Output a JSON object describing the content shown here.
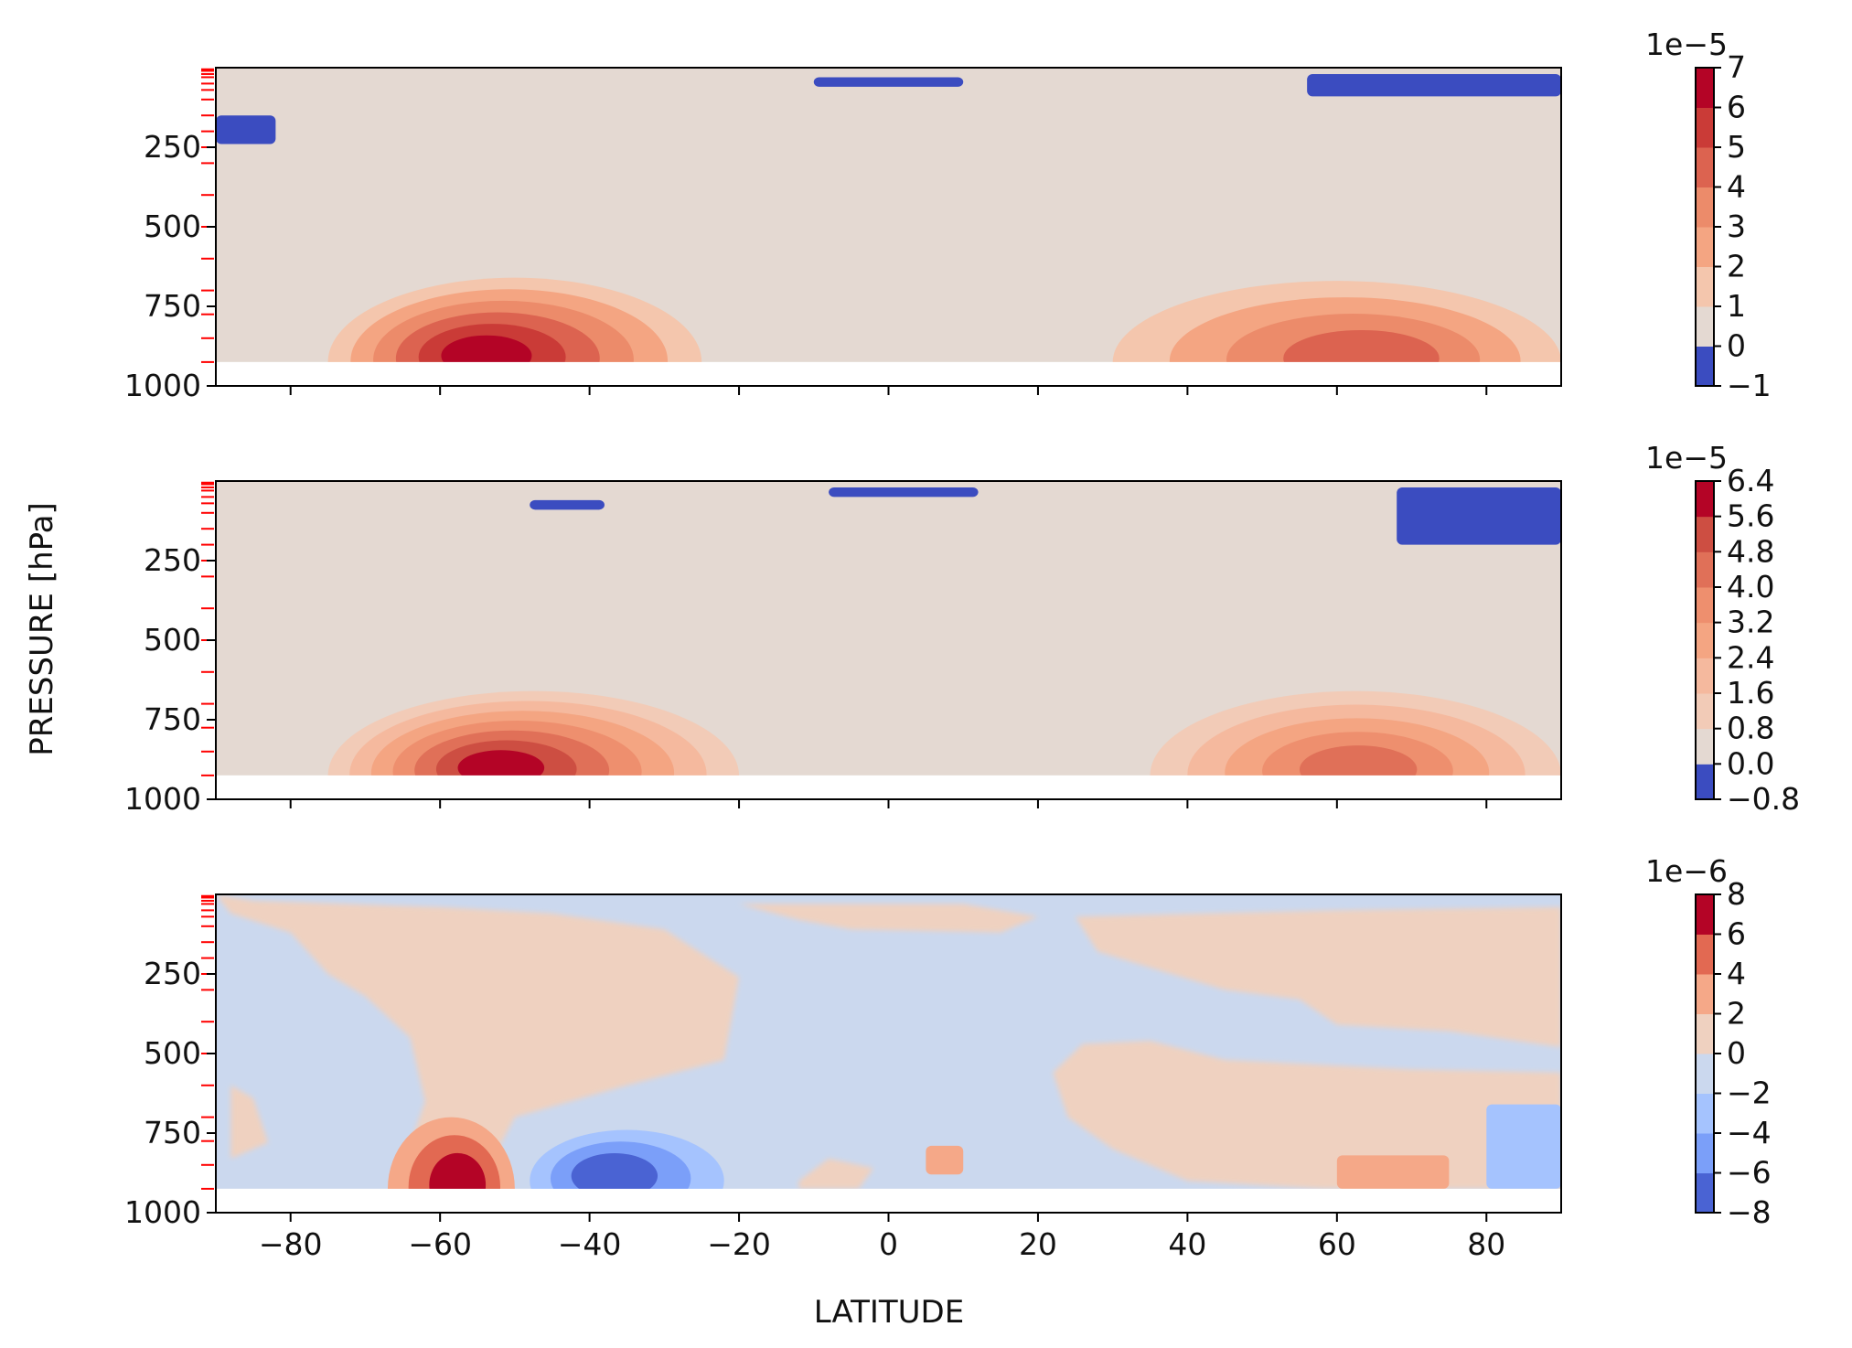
{
  "figure": {
    "ylabel": "PRESSURE [hPa]",
    "xlabel": "LATITUDE",
    "background": "#ffffff"
  },
  "chart_data": [
    {
      "type": "heatmap",
      "panel": "top",
      "xlim": [
        -90,
        90
      ],
      "ylim": [
        1000,
        0
      ],
      "x_ticks": [
        -80,
        -60,
        -40,
        -20,
        0,
        20,
        40,
        60,
        80
      ],
      "y_ticks": [
        250,
        500,
        750,
        1000
      ],
      "show_x_ticklabels": false,
      "field_bottom_pressure": 925,
      "level_marks": [
        5,
        10,
        20,
        30,
        50,
        70,
        100,
        150,
        200,
        250,
        300,
        400,
        500,
        600,
        700,
        775,
        850,
        925
      ],
      "colorbar": {
        "exponent": "1e−5",
        "tick_labels": [
          "7",
          "6",
          "5",
          "4",
          "3",
          "2",
          "1",
          "0",
          "−1"
        ],
        "levels": [
          -1,
          0,
          1,
          2,
          3,
          4,
          5,
          6,
          7
        ],
        "colors": [
          "#3b4cc0",
          "#e4d9d2",
          "#f4c6ad",
          "#f4a582",
          "#ec8b6a",
          "#dc6350",
          "#ca3b37",
          "#b40426"
        ]
      },
      "background_level_color": "#e4d9d2",
      "features": [
        {
          "kind": "max_region",
          "lat": [
            -75,
            -25
          ],
          "p": [
            660,
            925
          ],
          "peak_value": 6.5,
          "peak_lat": -55,
          "peak_p": 860
        },
        {
          "kind": "max_region",
          "lat": [
            30,
            90
          ],
          "p": [
            670,
            925
          ],
          "peak_value": 4.5,
          "peak_lat": 65,
          "peak_p": 880
        },
        {
          "kind": "min_region",
          "lat": [
            -90,
            -82
          ],
          "p": [
            150,
            240
          ],
          "value": -0.5
        },
        {
          "kind": "min_region",
          "lat": [
            -10,
            10
          ],
          "p": [
            30,
            60
          ],
          "value": -0.5
        },
        {
          "kind": "min_region",
          "lat": [
            56,
            90
          ],
          "p": [
            20,
            90
          ],
          "value": -0.5
        }
      ]
    },
    {
      "type": "heatmap",
      "panel": "middle",
      "xlim": [
        -90,
        90
      ],
      "ylim": [
        1000,
        0
      ],
      "x_ticks": [
        -80,
        -60,
        -40,
        -20,
        0,
        20,
        40,
        60,
        80
      ],
      "y_ticks": [
        250,
        500,
        750,
        1000
      ],
      "show_x_ticklabels": false,
      "field_bottom_pressure": 925,
      "level_marks": [
        5,
        10,
        20,
        30,
        50,
        70,
        100,
        150,
        200,
        250,
        300,
        400,
        500,
        600,
        700,
        775,
        850,
        925
      ],
      "colorbar": {
        "exponent": "1e−5",
        "tick_labels": [
          "6.4",
          "5.6",
          "4.8",
          "4.0",
          "3.2",
          "2.4",
          "1.6",
          "0.8",
          "0.0",
          "−0.8"
        ],
        "levels": [
          -0.8,
          0.0,
          0.8,
          1.6,
          2.4,
          3.2,
          4.0,
          4.8,
          5.6,
          6.4
        ],
        "colors": [
          "#3b4cc0",
          "#e4d9d2",
          "#f2cbb7",
          "#f5b99e",
          "#f4a582",
          "#ee8f6e",
          "#e07058",
          "#cd4e42",
          "#b40426"
        ]
      },
      "background_level_color": "#e4d9d2",
      "features": [
        {
          "kind": "max_region",
          "lat": [
            -75,
            -20
          ],
          "p": [
            660,
            925
          ],
          "peak_value": 5.8,
          "peak_lat": -53,
          "peak_p": 850
        },
        {
          "kind": "max_region",
          "lat": [
            35,
            90
          ],
          "p": [
            660,
            925
          ],
          "peak_value": 4.2,
          "peak_lat": 63,
          "peak_p": 860
        },
        {
          "kind": "min_region",
          "lat": [
            -48,
            -38
          ],
          "p": [
            60,
            90
          ],
          "value": -0.4
        },
        {
          "kind": "min_region",
          "lat": [
            -8,
            12
          ],
          "p": [
            20,
            50
          ],
          "value": -0.4
        },
        {
          "kind": "min_region",
          "lat": [
            68,
            90
          ],
          "p": [
            20,
            200
          ],
          "value": -0.4
        }
      ]
    },
    {
      "type": "heatmap",
      "panel": "bottom",
      "xlim": [
        -90,
        90
      ],
      "ylim": [
        1000,
        0
      ],
      "x_ticks": [
        -80,
        -60,
        -40,
        -20,
        0,
        20,
        40,
        60,
        80
      ],
      "x_tick_labels": [
        "−80",
        "−60",
        "−40",
        "−20",
        "0",
        "20",
        "40",
        "60",
        "80"
      ],
      "y_ticks": [
        250,
        500,
        750,
        1000
      ],
      "show_x_ticklabels": true,
      "field_bottom_pressure": 925,
      "level_marks": [
        5,
        10,
        20,
        30,
        50,
        70,
        100,
        150,
        200,
        250,
        300,
        400,
        500,
        600,
        700,
        775,
        850,
        925
      ],
      "colorbar": {
        "exponent": "1e−6",
        "tick_labels": [
          "8",
          "6",
          "4",
          "2",
          "0",
          "−2",
          "−4",
          "−6",
          "−8"
        ],
        "levels": [
          -8,
          -6,
          -4,
          -2,
          0,
          2,
          4,
          6,
          8
        ],
        "colors": [
          "#4a63d3",
          "#7b9ff9",
          "#a5c3fe",
          "#cbd8ee",
          "#efd1c0",
          "#f5a888",
          "#e26952",
          "#b40426"
        ]
      },
      "background_level_color": "#cbd8ee",
      "features": [
        {
          "kind": "max_region",
          "lat": [
            -67,
            -50
          ],
          "p": [
            700,
            925
          ],
          "peak_value": 7,
          "peak_lat": -57,
          "peak_p": 870
        },
        {
          "kind": "min_region",
          "lat": [
            -48,
            -22
          ],
          "p": [
            740,
            900
          ],
          "peak_value": -7,
          "peak_lat": -38,
          "peak_p": 830
        },
        {
          "kind": "max_region",
          "lat": [
            5,
            10
          ],
          "p": [
            790,
            880
          ],
          "value": 3
        },
        {
          "kind": "max_region",
          "lat": [
            60,
            75
          ],
          "p": [
            820,
            925
          ],
          "value": 3
        },
        {
          "kind": "min_region",
          "lat": [
            80,
            90
          ],
          "p": [
            660,
            925
          ],
          "value": -3
        }
      ]
    }
  ]
}
